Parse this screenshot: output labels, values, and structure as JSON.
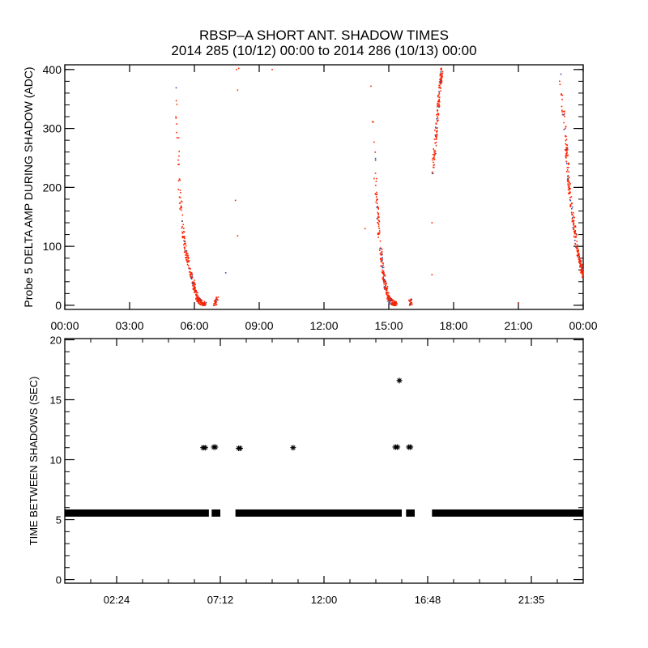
{
  "title": "RBSP–A SHORT ANT. SHADOW TIMES",
  "subtitle": "2014 285 (10/12) 00:00 to 2014 286 (10/13) 00:00",
  "colors": {
    "points": "#ff2200",
    "alt_points": "#3050a0",
    "axis": "#000000"
  },
  "chart_data": [
    {
      "type": "scatter",
      "ylabel": "Probe 5 DELTA AMP DURING SHADOW (ADC)",
      "xlabel": "",
      "xlim": [
        0,
        24
      ],
      "ylim": [
        -7,
        408
      ],
      "x_ticks": [
        0,
        3,
        6,
        9,
        12,
        15,
        18,
        21,
        24
      ],
      "x_tick_labels": [
        "00:00",
        "03:00",
        "06:00",
        "09:00",
        "12:00",
        "15:00",
        "18:00",
        "21:00",
        "00:00"
      ],
      "y_ticks": [
        0,
        100,
        200,
        300,
        400
      ],
      "y_tick_labels": [
        "0",
        "100",
        "200",
        "300",
        "400"
      ],
      "x_units": "hours",
      "passes": [
        {
          "name": "pass-1",
          "count": 260,
          "trend": [
            [
              5.14,
              392
            ],
            [
              5.3,
              200
            ],
            [
              5.55,
              100
            ],
            [
              5.85,
              50
            ],
            [
              6.15,
              10
            ],
            [
              6.5,
              0
            ]
          ]
        },
        {
          "name": "pass-1b",
          "count": 25,
          "trend": [
            [
              6.9,
              0
            ],
            [
              7.05,
              10
            ]
          ]
        },
        {
          "name": "pass-2",
          "count": 260,
          "trend": [
            [
              14.2,
              400
            ],
            [
              14.4,
              200
            ],
            [
              14.6,
              100
            ],
            [
              14.75,
              50
            ],
            [
              15.0,
              10
            ],
            [
              15.35,
              0
            ]
          ]
        },
        {
          "name": "pass-2b",
          "count": 20,
          "trend": [
            [
              15.9,
              0
            ],
            [
              16.05,
              8
            ]
          ]
        },
        {
          "name": "pass-3",
          "count": 140,
          "trend": [
            [
              17.0,
              210
            ],
            [
              17.2,
              300
            ],
            [
              17.45,
              400
            ]
          ]
        },
        {
          "name": "pass-4",
          "count": 240,
          "trend": [
            [
              22.9,
              400
            ],
            [
              23.15,
              300
            ],
            [
              23.35,
              200
            ],
            [
              23.7,
              100
            ],
            [
              24.0,
              50
            ]
          ]
        }
      ],
      "isolated_points": [
        [
          7.95,
          400
        ],
        [
          8.05,
          402
        ],
        [
          8.0,
          365
        ],
        [
          7.9,
          178
        ],
        [
          8.0,
          118
        ],
        [
          7.45,
          55
        ],
        [
          9.6,
          400
        ],
        [
          13.9,
          130
        ],
        [
          21.0,
          3
        ],
        [
          17.0,
          140
        ],
        [
          17.0,
          52
        ]
      ]
    },
    {
      "type": "scatter",
      "ylabel": "TIME BETWEEN SHADOWS (SEC)",
      "xlabel": "",
      "xlim": [
        0,
        24
      ],
      "ylim": [
        -0.3,
        20.1
      ],
      "x_ticks": [
        2.4,
        7.2,
        12.0,
        16.8,
        21.6
      ],
      "x_tick_labels": [
        "02:24",
        "07:12",
        "12:00",
        "16:48",
        "21:35"
      ],
      "y_ticks": [
        0,
        5,
        10,
        15,
        20
      ],
      "y_tick_labels": [
        "0",
        "5",
        "10",
        "15",
        "20"
      ],
      "baseline_value": 5.55,
      "baseline_segments": [
        [
          0,
          6.67
        ],
        [
          6.8,
          7.2
        ],
        [
          7.9,
          15.6
        ],
        [
          15.8,
          16.2
        ],
        [
          17.0,
          24
        ]
      ],
      "outliers": [
        [
          6.4,
          11.0
        ],
        [
          6.5,
          11.0
        ],
        [
          6.9,
          11.05
        ],
        [
          6.97,
          11.05
        ],
        [
          8.05,
          10.95
        ],
        [
          8.12,
          10.95
        ],
        [
          10.57,
          11.0
        ],
        [
          15.3,
          11.05
        ],
        [
          15.4,
          11.05
        ],
        [
          15.49,
          16.6
        ],
        [
          15.93,
          11.05
        ],
        [
          16.0,
          11.05
        ]
      ]
    }
  ]
}
